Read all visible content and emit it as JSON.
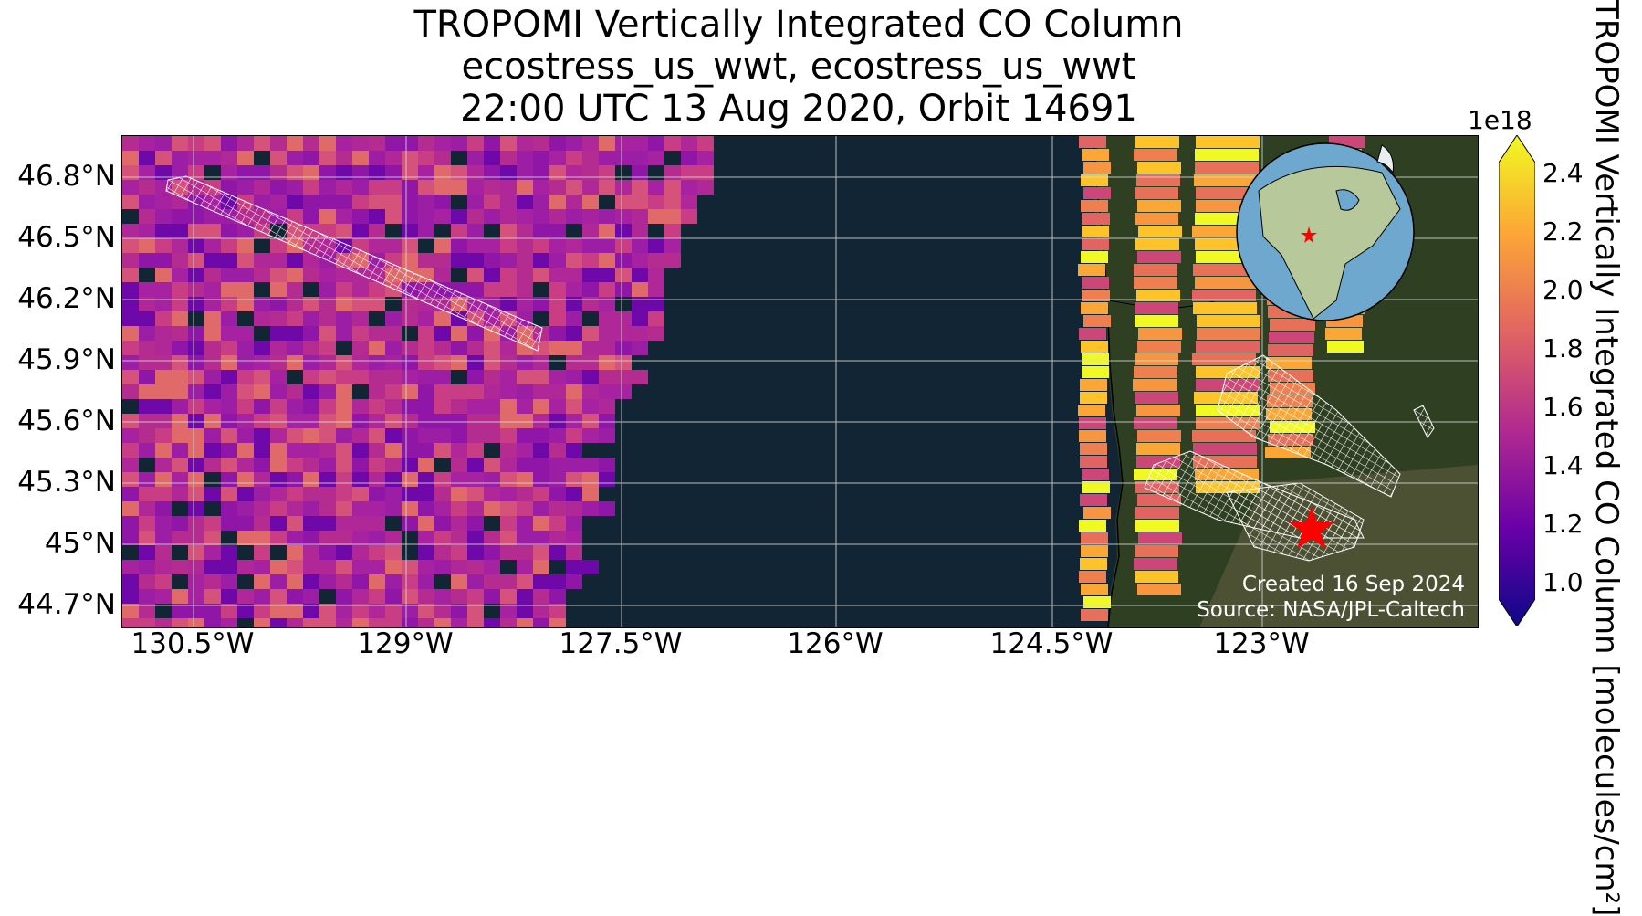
{
  "title": {
    "line1": "TROPOMI Vertically Integrated CO Column",
    "line2": "ecostress_us_wwt, ecostress_us_wwt",
    "line3": "22:00 UTC 13 Aug 2020, Orbit 14691"
  },
  "map": {
    "lat_ticks": [
      "46.8°N",
      "46.5°N",
      "46.2°N",
      "45.9°N",
      "45.6°N",
      "45.3°N",
      "45°N",
      "44.7°N"
    ],
    "lon_ticks": [
      "130.5°W",
      "129°W",
      "127.5°W",
      "126°W",
      "124.5°W",
      "123°W"
    ],
    "site_marker": "red-star",
    "credit_created": "Created 16 Sep 2024",
    "credit_source": "Source: NASA/JPL-Caltech"
  },
  "colorbar": {
    "exponent": "1e18",
    "ticks": [
      "2.4",
      "2.2",
      "2.0",
      "1.8",
      "1.6",
      "1.4",
      "1.2",
      "1.0"
    ],
    "label": "TROPOMI Vertically Integrated CO Column [molecules/cm²]",
    "colormap": "plasma",
    "colors": [
      "#0d0887",
      "#6a00a8",
      "#b12a90",
      "#e16462",
      "#fca636",
      "#f0f921"
    ]
  },
  "inset_globe": {
    "marker": "red-star"
  }
}
